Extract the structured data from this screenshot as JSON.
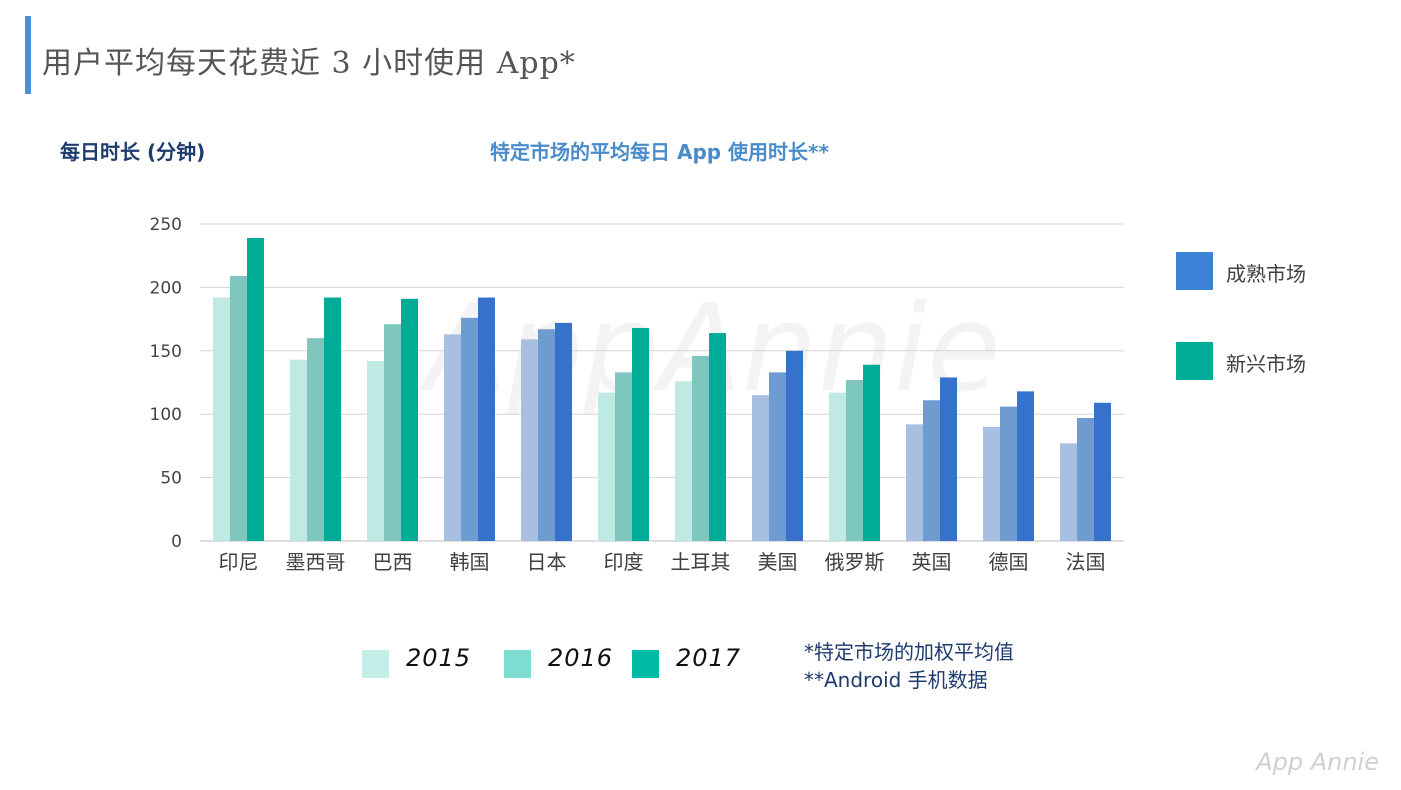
{
  "page": {
    "title": "用户平均每天花费近 3 小时使用 App*"
  },
  "axis_unit_label": "每日时长 (分钟)",
  "colors": {
    "accent": "#4a90d9",
    "emerging": [
      "#bfe9e3",
      "#7fc6bf",
      "#00ac96"
    ],
    "mature": [
      "#a7bfe0",
      "#6e9bd0",
      "#3672cc"
    ],
    "legend_mature": "#3b82d6",
    "legend_emerging": "#00ac96",
    "legend_2015": "#c2eee8",
    "legend_2016": "#7fdcd0",
    "legend_2017": "#00bba6"
  },
  "legend_markets": [
    {
      "label": "成熟市场",
      "color": "#3b82d6"
    },
    {
      "label": "新兴市场",
      "color": "#00ac96"
    }
  ],
  "legend_years": [
    {
      "label": "2015",
      "color": "#c2eee8"
    },
    {
      "label": "2016",
      "color": "#7fdcd0"
    },
    {
      "label": "2017",
      "color": "#00bba6"
    }
  ],
  "notes": [
    "*特定市场的加权平均值",
    "**Android 手机数据"
  ],
  "brand": "App Annie",
  "chart_data": {
    "type": "bar",
    "title": "特定市场的平均每日 App 使用时长**",
    "ylabel": "每日时长 (分钟)",
    "xlabel": "",
    "ylim": [
      0,
      250
    ],
    "yticks": [
      0,
      50,
      100,
      150,
      200,
      250
    ],
    "categories": [
      "印尼",
      "墨西哥",
      "巴西",
      "韩国",
      "日本",
      "印度",
      "土耳其",
      "美国",
      "俄罗斯",
      "英国",
      "德国",
      "法国"
    ],
    "market_type": [
      "emerging",
      "emerging",
      "emerging",
      "mature",
      "mature",
      "emerging",
      "emerging",
      "mature",
      "emerging",
      "mature",
      "mature",
      "mature"
    ],
    "series": [
      {
        "name": "2015",
        "values": [
          192,
          143,
          142,
          163,
          159,
          117,
          126,
          115,
          117,
          92,
          90,
          77
        ]
      },
      {
        "name": "2016",
        "values": [
          209,
          160,
          171,
          176,
          167,
          133,
          146,
          133,
          127,
          111,
          106,
          97
        ]
      },
      {
        "name": "2017",
        "values": [
          239,
          192,
          191,
          192,
          172,
          168,
          164,
          150,
          139,
          129,
          118,
          109
        ]
      }
    ]
  }
}
